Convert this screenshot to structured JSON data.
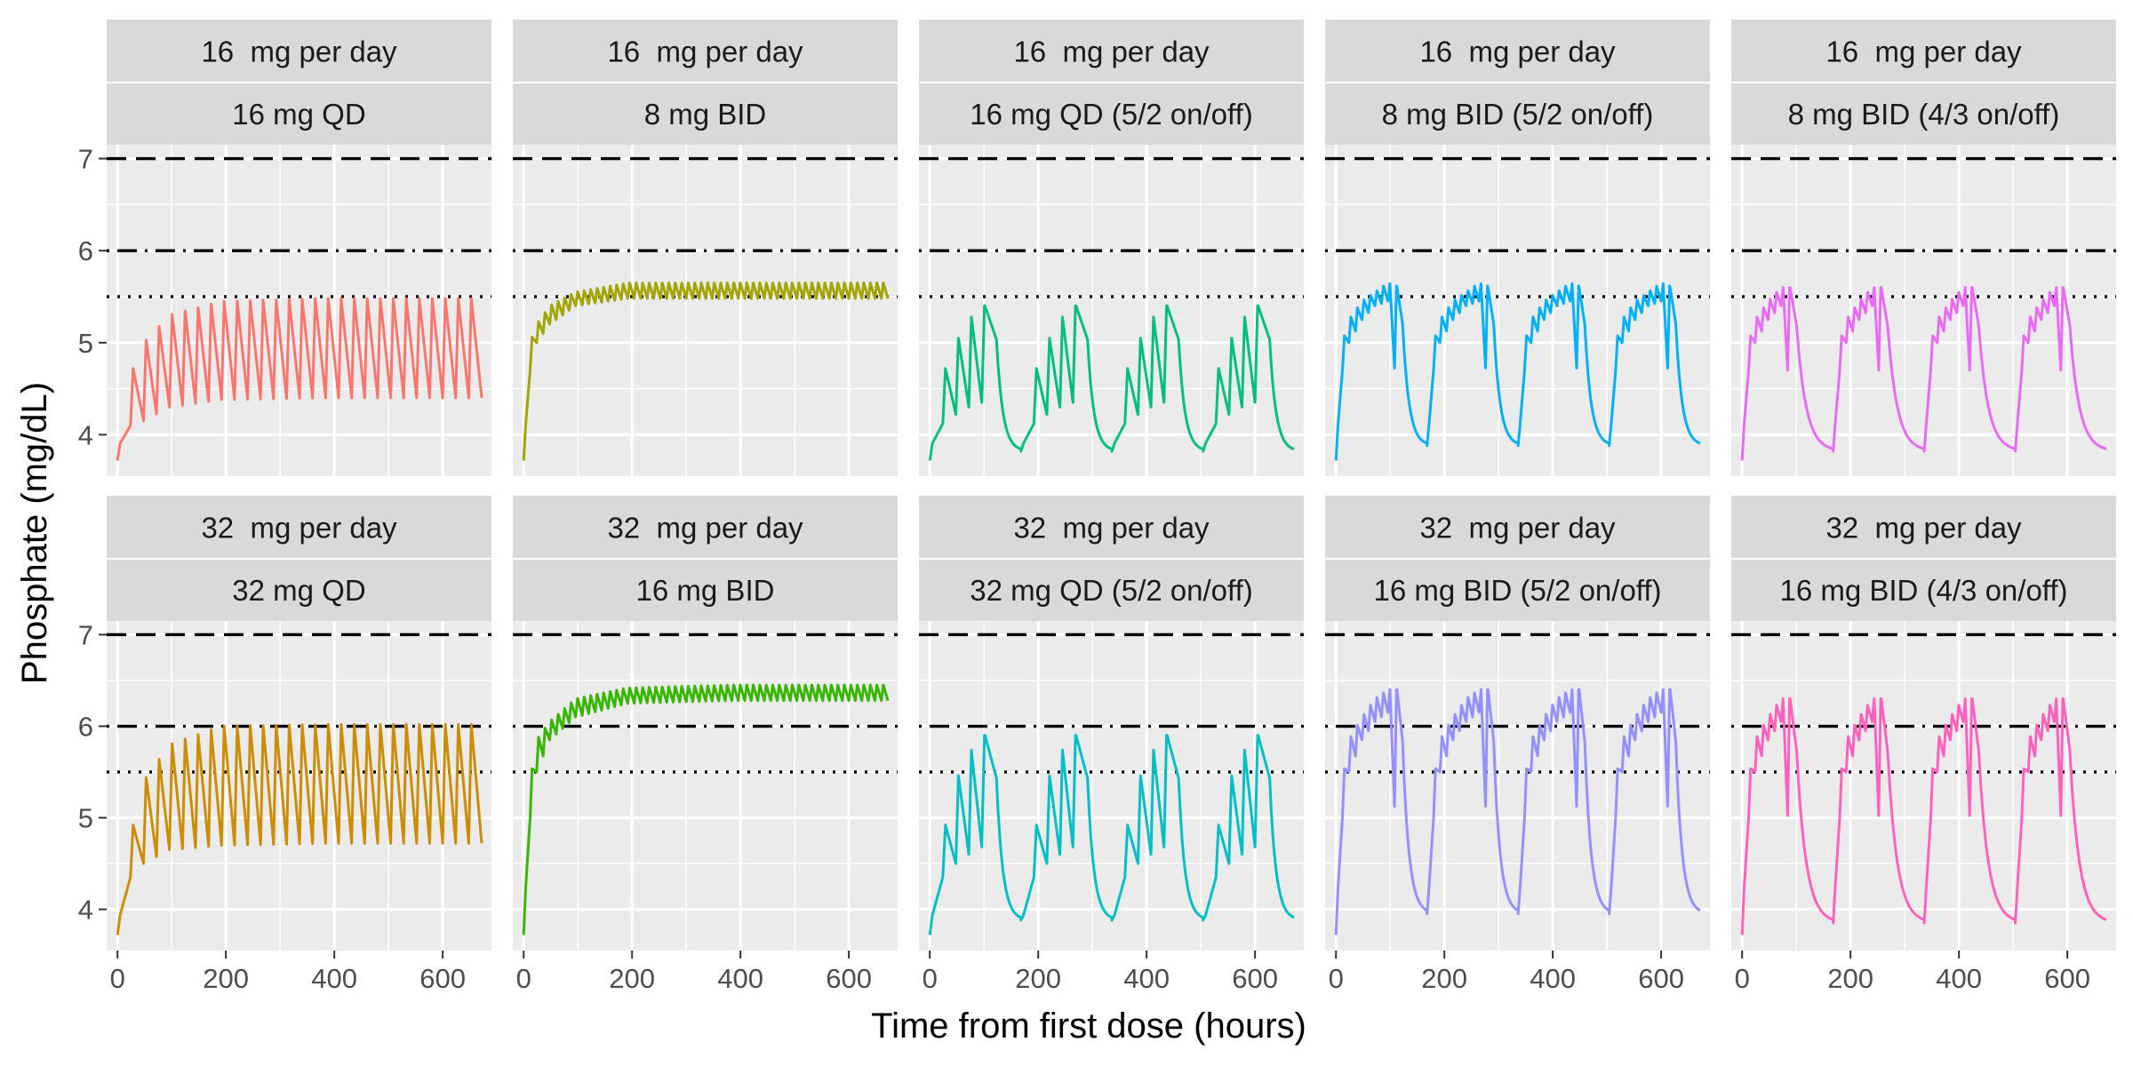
{
  "chart_data": {
    "type": "line",
    "xlabel": "Time from first dose (hours)",
    "ylabel": "Phosphate (mg/dL)",
    "xlim": [
      -20,
      690
    ],
    "ylim": [
      3.55,
      7.15
    ],
    "x_ticks": [
      0,
      200,
      400,
      600
    ],
    "y_ticks": [
      4,
      5,
      6,
      7
    ],
    "reference_lines": [
      {
        "y": 7.0,
        "style": "dashed"
      },
      {
        "y": 6.0,
        "style": "dotdash"
      },
      {
        "y": 5.5,
        "style": "dotted"
      }
    ],
    "legend": "none",
    "grid": true,
    "facets": [
      {
        "row": 0,
        "col": 0,
        "strip_top": "16  mg per day",
        "strip_bottom": "16 mg QD",
        "color": "#F8766D",
        "regimen": {
          "interval": 24,
          "on_days": 7,
          "off_days": 0
        },
        "series": {
          "x": [
            0,
            24,
            48,
            96,
            192,
            384,
            672
          ],
          "trough": [
            3.72,
            4.1,
            4.15,
            4.3,
            4.38,
            4.4,
            4.4
          ],
          "peak": [
            3.72,
            4.65,
            5.0,
            5.3,
            5.45,
            5.48,
            5.48
          ]
        }
      },
      {
        "row": 0,
        "col": 1,
        "strip_top": "16  mg per day",
        "strip_bottom": "8 mg BID",
        "color": "#A3A500",
        "regimen": {
          "interval": 12,
          "on_days": 7,
          "off_days": 0
        },
        "series": {
          "x": [
            0,
            12,
            24,
            48,
            96,
            192,
            384,
            672
          ],
          "trough": [
            3.72,
            4.7,
            5.0,
            5.2,
            5.4,
            5.48,
            5.48,
            5.48
          ],
          "peak": [
            3.72,
            5.0,
            5.2,
            5.4,
            5.55,
            5.65,
            5.65,
            5.65
          ]
        }
      },
      {
        "row": 0,
        "col": 2,
        "strip_top": "16  mg per day",
        "strip_bottom": "16 mg QD (5/2 on/off)",
        "color": "#00BF7D",
        "regimen": {
          "interval": 24,
          "on_days": 5,
          "off_days": 2
        },
        "series": {
          "x": [
            0,
            24,
            48,
            72,
            96,
            120,
            168
          ],
          "trough": [
            3.72,
            4.12,
            4.22,
            4.3,
            4.35,
            3.9,
            3.82
          ],
          "peak": [
            3.72,
            4.65,
            5.0,
            5.25,
            5.4,
            5.4,
            3.85
          ]
        }
      },
      {
        "row": 0,
        "col": 3,
        "strip_top": "16  mg per day",
        "strip_bottom": "8 mg BID (5/2 on/off)",
        "color": "#00B0F6",
        "regimen": {
          "interval": 12,
          "on_days": 5,
          "off_days": 2
        },
        "series": {
          "x": [
            0,
            12,
            24,
            48,
            72,
            96,
            120,
            168
          ],
          "trough": [
            3.72,
            4.7,
            5.0,
            5.25,
            5.4,
            5.45,
            4.0,
            3.88
          ],
          "peak": [
            3.72,
            5.0,
            5.25,
            5.45,
            5.55,
            5.65,
            5.6,
            3.9
          ]
        }
      },
      {
        "row": 0,
        "col": 4,
        "strip_top": "16  mg per day",
        "strip_bottom": "8 mg BID (4/3 on/off)",
        "color": "#E76BF3",
        "regimen": {
          "interval": 12,
          "on_days": 4,
          "off_days": 3
        },
        "series": {
          "x": [
            0,
            12,
            24,
            48,
            72,
            96,
            168
          ],
          "trough": [
            3.72,
            4.7,
            5.0,
            5.25,
            5.4,
            4.0,
            3.82
          ],
          "peak": [
            3.72,
            5.0,
            5.25,
            5.45,
            5.6,
            5.6,
            3.85
          ]
        }
      },
      {
        "row": 1,
        "col": 0,
        "strip_top": "32  mg per day",
        "strip_bottom": "32 mg QD",
        "color": "#CD8D00",
        "regimen": {
          "interval": 24,
          "on_days": 7,
          "off_days": 0
        },
        "series": {
          "x": [
            0,
            24,
            48,
            96,
            192,
            384,
            672
          ],
          "trough": [
            3.72,
            4.35,
            4.5,
            4.65,
            4.7,
            4.72,
            4.72
          ],
          "peak": [
            3.72,
            4.8,
            5.4,
            5.8,
            6.0,
            6.02,
            6.02
          ]
        }
      },
      {
        "row": 1,
        "col": 1,
        "strip_top": "32  mg per day",
        "strip_bottom": "16 mg BID",
        "color": "#39B600",
        "regimen": {
          "interval": 12,
          "on_days": 7,
          "off_days": 0
        },
        "series": {
          "x": [
            0,
            12,
            24,
            48,
            96,
            192,
            384,
            672
          ],
          "trough": [
            3.72,
            5.0,
            5.5,
            5.85,
            6.1,
            6.25,
            6.28,
            6.28
          ],
          "peak": [
            3.72,
            5.4,
            5.85,
            6.05,
            6.3,
            6.42,
            6.45,
            6.45
          ]
        }
      },
      {
        "row": 1,
        "col": 2,
        "strip_top": "32  mg per day",
        "strip_bottom": "32 mg QD (5/2 on/off)",
        "color": "#00BFC4",
        "regimen": {
          "interval": 24,
          "on_days": 5,
          "off_days": 2
        },
        "series": {
          "x": [
            0,
            24,
            48,
            72,
            96,
            120,
            168
          ],
          "trough": [
            3.72,
            4.35,
            4.5,
            4.6,
            4.68,
            4.0,
            3.88
          ],
          "peak": [
            3.72,
            4.8,
            5.4,
            5.7,
            5.9,
            5.9,
            3.9
          ]
        }
      },
      {
        "row": 1,
        "col": 3,
        "strip_top": "32  mg per day",
        "strip_bottom": "16 mg BID (5/2 on/off)",
        "color": "#9590FF",
        "regimen": {
          "interval": 12,
          "on_days": 5,
          "off_days": 2
        },
        "series": {
          "x": [
            0,
            12,
            24,
            48,
            72,
            96,
            120,
            168
          ],
          "trough": [
            3.72,
            5.0,
            5.5,
            5.85,
            6.05,
            6.15,
            4.1,
            3.95
          ],
          "peak": [
            3.72,
            5.4,
            5.85,
            6.1,
            6.3,
            6.4,
            6.4,
            3.98
          ]
        }
      },
      {
        "row": 1,
        "col": 4,
        "strip_top": "32  mg per day",
        "strip_bottom": "16 mg BID (4/3 on/off)",
        "color": "#FF62BC",
        "regimen": {
          "interval": 12,
          "on_days": 4,
          "off_days": 3
        },
        "series": {
          "x": [
            0,
            12,
            24,
            48,
            72,
            96,
            168
          ],
          "trough": [
            3.72,
            5.0,
            5.5,
            5.85,
            6.05,
            4.0,
            3.85
          ],
          "peak": [
            3.72,
            5.4,
            5.85,
            6.1,
            6.3,
            6.3,
            3.88
          ]
        }
      }
    ]
  }
}
